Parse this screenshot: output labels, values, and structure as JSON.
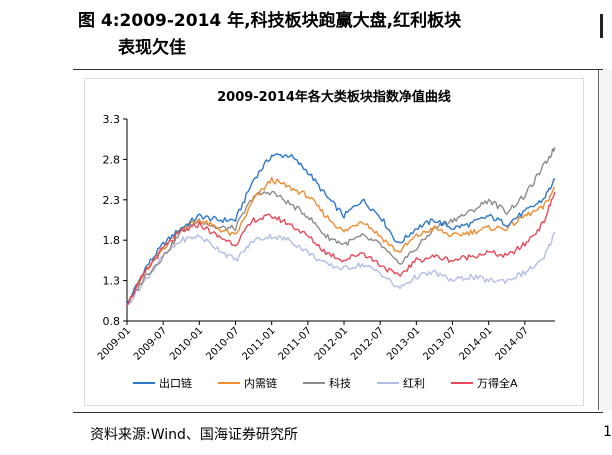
{
  "figure": {
    "heading_line1": "图 4:2009-2014 年,科技板块跑赢大盘,红利板块",
    "heading_line2": "表现欠佳",
    "source": "资料来源:Wind、国海证券研究所"
  },
  "chart_data": {
    "type": "line",
    "title": "2009-2014年各大类板块指数净值曲线",
    "xlabel": "",
    "ylabel": "",
    "ylim": [
      0.8,
      3.3
    ],
    "yticks": [
      "3.3",
      "2.8",
      "2.3",
      "1.8",
      "1.3",
      "0.8"
    ],
    "xticks": [
      "2009-01",
      "2009-07",
      "2010-01",
      "2010-07",
      "2011-01",
      "2011-07",
      "2012-01",
      "2012-07",
      "2013-01",
      "2013-07",
      "2014-01",
      "2014-07"
    ],
    "x": [
      "2009-01",
      "2009-04",
      "2009-07",
      "2009-10",
      "2010-01",
      "2010-04",
      "2010-07",
      "2010-10",
      "2011-01",
      "2011-04",
      "2011-07",
      "2011-10",
      "2012-01",
      "2012-04",
      "2012-07",
      "2012-10",
      "2013-01",
      "2013-04",
      "2013-07",
      "2013-10",
      "2014-01",
      "2014-04",
      "2014-07",
      "2014-10",
      "2014-12"
    ],
    "grid": false,
    "legend": "bottom",
    "series": [
      {
        "name": "出口链",
        "color": "#2e78c8",
        "values": [
          1.0,
          1.45,
          1.75,
          1.95,
          2.1,
          2.05,
          2.05,
          2.55,
          2.85,
          2.85,
          2.65,
          2.35,
          2.1,
          2.3,
          2.1,
          1.75,
          1.95,
          2.05,
          1.95,
          2.0,
          2.1,
          2.0,
          2.15,
          2.3,
          2.55
        ]
      },
      {
        "name": "内需链",
        "color": "#f08c30",
        "values": [
          1.0,
          1.4,
          1.7,
          1.95,
          2.05,
          1.95,
          1.85,
          2.3,
          2.55,
          2.45,
          2.35,
          2.1,
          1.9,
          2.05,
          1.85,
          1.65,
          1.85,
          1.95,
          1.85,
          1.9,
          1.95,
          1.95,
          2.1,
          2.2,
          2.45
        ]
      },
      {
        "name": "科技",
        "color": "#8c8c8c",
        "values": [
          1.0,
          1.35,
          1.6,
          1.9,
          2.05,
          1.95,
          1.95,
          2.35,
          2.4,
          2.25,
          2.1,
          1.85,
          1.75,
          1.85,
          1.75,
          1.5,
          1.7,
          1.95,
          2.05,
          2.15,
          2.3,
          2.15,
          2.35,
          2.7,
          2.95
        ]
      },
      {
        "name": "红利",
        "color": "#b4bee8",
        "values": [
          1.0,
          1.3,
          1.6,
          1.8,
          1.85,
          1.7,
          1.55,
          1.8,
          1.85,
          1.8,
          1.65,
          1.5,
          1.45,
          1.5,
          1.4,
          1.2,
          1.35,
          1.4,
          1.3,
          1.35,
          1.3,
          1.3,
          1.4,
          1.55,
          1.9
        ]
      },
      {
        "name": "万得全A",
        "color": "#e84a5a",
        "values": [
          1.0,
          1.4,
          1.7,
          1.9,
          2.0,
          1.85,
          1.75,
          2.05,
          2.1,
          2.0,
          1.85,
          1.65,
          1.55,
          1.65,
          1.5,
          1.35,
          1.55,
          1.6,
          1.55,
          1.6,
          1.65,
          1.6,
          1.75,
          2.0,
          2.4
        ]
      }
    ]
  }
}
